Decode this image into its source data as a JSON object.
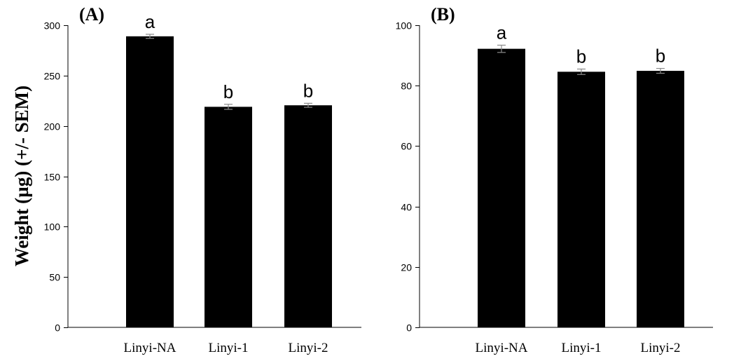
{
  "figure": {
    "ylabel": "Weight (µg) (+/- SEM)"
  },
  "chart_data": [
    {
      "type": "bar",
      "panel_label": "(A)",
      "title": "",
      "xlabel": "",
      "ylabel": "Weight (µg) (+/- SEM)",
      "categories": [
        "Linyi-NA",
        "Linyi-1",
        "Linyi-2"
      ],
      "values": [
        289,
        219,
        220.5
      ],
      "errors": [
        2,
        2.5,
        2
      ],
      "significance": [
        "a",
        "b",
        "b"
      ],
      "ylim": [
        0,
        300
      ],
      "yticks": [
        0,
        50,
        100,
        150,
        200,
        250,
        300
      ],
      "grid": false,
      "bar_color": "#000000",
      "error_color": "#8a8a8a"
    },
    {
      "type": "bar",
      "panel_label": "(B)",
      "title": "",
      "xlabel": "",
      "ylabel": "",
      "categories": [
        "Linyi-NA",
        "Linyi-1",
        "Linyi-2"
      ],
      "values": [
        92.2,
        84.6,
        84.9
      ],
      "errors": [
        1.2,
        0.9,
        0.8
      ],
      "significance": [
        "a",
        "b",
        "b"
      ],
      "ylim": [
        0,
        100
      ],
      "yticks": [
        0,
        20,
        40,
        60,
        80,
        100
      ],
      "grid": false,
      "bar_color": "#000000",
      "error_color": "#8a8a8a"
    }
  ]
}
